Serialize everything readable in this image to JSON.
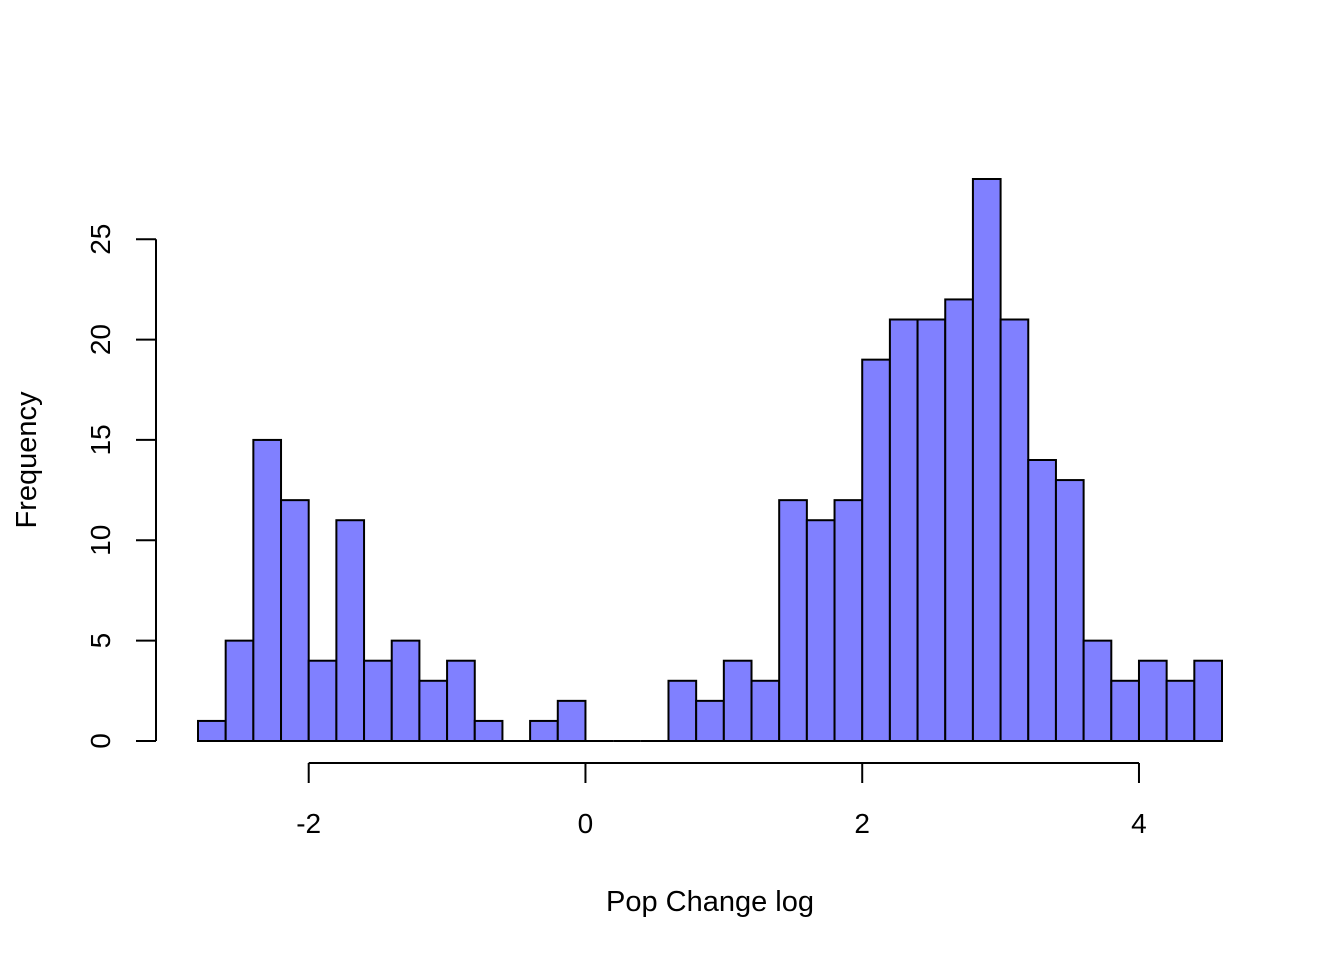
{
  "chart_data": {
    "type": "bar",
    "subtype": "histogram",
    "title": "",
    "xlabel": "Pop Change log",
    "ylabel": "Frequency",
    "bin_start": -2.8,
    "bin_width": 0.2,
    "counts": [
      1,
      5,
      15,
      12,
      4,
      11,
      4,
      5,
      3,
      4,
      1,
      0,
      1,
      2,
      0,
      0,
      0,
      3,
      2,
      4,
      3,
      12,
      11,
      12,
      19,
      21,
      21,
      22,
      28,
      21,
      14,
      13,
      5,
      3,
      4,
      3,
      4
    ],
    "xlim": [
      -2.8,
      4.6
    ],
    "ylim": [
      0,
      28
    ],
    "x_axis_range": [
      -2,
      4
    ],
    "y_axis_range": [
      0,
      25
    ],
    "x_ticks": [
      -2,
      0,
      2,
      4
    ],
    "x_tick_labels": [
      "-2",
      "0",
      "2",
      "4"
    ],
    "y_ticks": [
      0,
      5,
      10,
      15,
      20,
      25
    ],
    "y_tick_labels": [
      "0",
      "5",
      "10",
      "15",
      "20",
      "25"
    ],
    "grid": false,
    "legend": "none",
    "bar_color": "#8080FF",
    "border_color": "#000000"
  }
}
